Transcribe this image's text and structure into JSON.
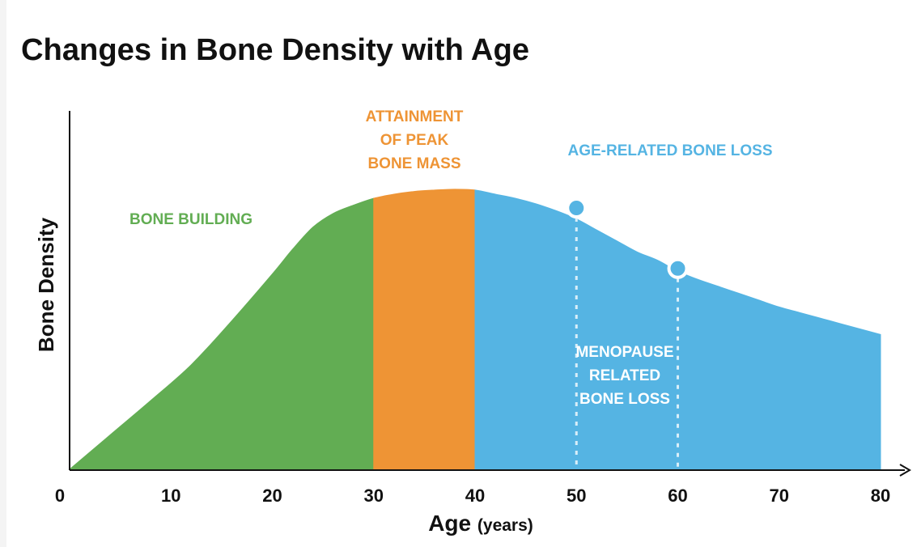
{
  "chart_data": {
    "type": "area",
    "title": "Changes in Bone Density with Age",
    "xlabel": "Age",
    "xlabel_unit": "(years)",
    "ylabel": "Bone Density",
    "xlim": [
      0,
      80
    ],
    "ylim": [
      0,
      100
    ],
    "x_ticks": [
      {
        "value": 0,
        "label": "0"
      },
      {
        "value": 10,
        "label": "10"
      },
      {
        "value": 20,
        "label": "20"
      },
      {
        "value": 30,
        "label": "30"
      },
      {
        "value": 40,
        "label": "40"
      },
      {
        "value": 50,
        "label": "50"
      },
      {
        "value": 60,
        "label": "60"
      },
      {
        "value": 70,
        "label": "70"
      },
      {
        "value": 80,
        "label": "80"
      }
    ],
    "grid": false,
    "curve": {
      "x": [
        0,
        4,
        8,
        12,
        16,
        20,
        22,
        24,
        26,
        28,
        30,
        32,
        34,
        36,
        38,
        40,
        42,
        44,
        46,
        48,
        50,
        52,
        54,
        56,
        58,
        60,
        62,
        64,
        66,
        68,
        70,
        72,
        74,
        76,
        78,
        80
      ],
      "y": [
        0,
        12.5,
        25,
        38,
        54,
        71,
        80,
        88,
        93,
        96,
        98.5,
        100,
        101,
        101.5,
        101.8,
        101.5,
        100,
        98.5,
        96.5,
        94,
        91,
        87,
        83,
        79,
        76,
        72,
        69,
        66.5,
        64,
        61.5,
        59,
        57,
        55,
        53,
        51,
        49
      ]
    },
    "regions": [
      {
        "label": "BONE BUILDING",
        "x_start": 0,
        "x_end": 30,
        "color": "#62ad53"
      },
      {
        "label": "ATTAINMENT OF PEAK BONE MASS",
        "x_start": 30,
        "x_end": 40,
        "color": "#ee9435"
      },
      {
        "label": "AGE-RELATED BONE LOSS",
        "x_start": 40,
        "x_end": 80,
        "color": "#55b4e3"
      }
    ],
    "region_label_lines": {
      "bone_building": [
        "BONE BUILDING"
      ],
      "peak": [
        "ATTAINMENT",
        "OF PEAK",
        "BONE MASS"
      ],
      "age_loss": [
        "AGE-RELATED BONE LOSS"
      ],
      "menopause": [
        "MENOPAUSE",
        "RELATED",
        "BONE LOSS"
      ]
    },
    "markers": [
      {
        "x": 50,
        "y": 95
      },
      {
        "x": 60,
        "y": 73
      }
    ],
    "colors": {
      "bone_building": "#62ad53",
      "peak": "#ee9435",
      "age_loss": "#55b4e3",
      "menopause_text": "#ffffff",
      "text": "#111111"
    }
  }
}
